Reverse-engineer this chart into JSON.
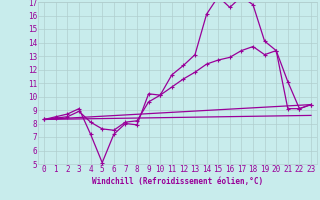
{
  "bg_color": "#c8ecec",
  "line_color": "#990099",
  "grid_color": "#b0cece",
  "xlabel": "Windchill (Refroidissement éolien,°C)",
  "xlabel_color": "#990099",
  "xlim": [
    -0.5,
    23.5
  ],
  "ylim": [
    5,
    17
  ],
  "xticks": [
    0,
    1,
    2,
    3,
    4,
    5,
    6,
    7,
    8,
    9,
    10,
    11,
    12,
    13,
    14,
    15,
    16,
    17,
    18,
    19,
    20,
    21,
    22,
    23
  ],
  "yticks": [
    5,
    6,
    7,
    8,
    9,
    10,
    11,
    12,
    13,
    14,
    15,
    16,
    17
  ],
  "line1_x": [
    0,
    1,
    2,
    3,
    4,
    5,
    6,
    7,
    8,
    9,
    10,
    11,
    12,
    13,
    14,
    15,
    16,
    17,
    18,
    19,
    20,
    21,
    22,
    23
  ],
  "line1_y": [
    8.3,
    8.5,
    8.7,
    9.1,
    7.2,
    5.1,
    7.2,
    8.0,
    7.9,
    10.2,
    10.1,
    11.6,
    12.3,
    13.1,
    16.1,
    17.4,
    16.6,
    17.4,
    16.8,
    14.1,
    13.4,
    11.1,
    9.1,
    9.4
  ],
  "line2_x": [
    0,
    1,
    2,
    3,
    4,
    5,
    6,
    7,
    8,
    9,
    10,
    11,
    12,
    13,
    14,
    15,
    16,
    17,
    18,
    19,
    20,
    21,
    22,
    23
  ],
  "line2_y": [
    8.3,
    8.4,
    8.5,
    8.9,
    8.1,
    7.6,
    7.5,
    8.1,
    8.2,
    9.6,
    10.1,
    10.7,
    11.3,
    11.8,
    12.4,
    12.7,
    12.9,
    13.4,
    13.7,
    13.1,
    13.4,
    9.1,
    9.1,
    9.4
  ],
  "line3_x": [
    0,
    23
  ],
  "line3_y": [
    8.3,
    9.4
  ],
  "line4_x": [
    0,
    23
  ],
  "line4_y": [
    8.3,
    8.6
  ]
}
